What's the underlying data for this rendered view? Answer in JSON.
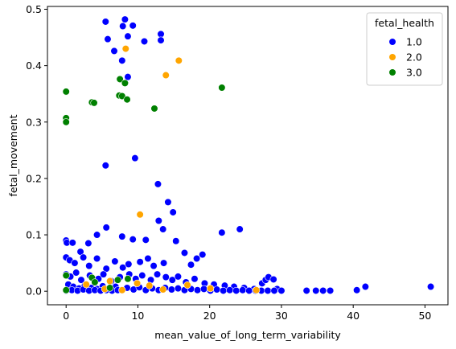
{
  "chart_data": {
    "type": "scatter",
    "title": "",
    "xlabel": "mean_value_of_long_term_variability",
    "ylabel": "fetal_movement",
    "xlim": [
      -2.6,
      53.2
    ],
    "ylim": [
      -0.024,
      0.505
    ],
    "xticks": [
      "0",
      "10",
      "20",
      "30",
      "40",
      "50"
    ],
    "yticks": [
      "0.0",
      "0.1",
      "0.2",
      "0.3",
      "0.4",
      "0.5"
    ],
    "grid": false,
    "legend": {
      "title": "fetal_health",
      "placement": "top-right"
    },
    "series": [
      {
        "name": "1.0",
        "color": "#0000ff",
        "points": [
          [
            5.5,
            0.478
          ],
          [
            8.2,
            0.482
          ],
          [
            9.3,
            0.471
          ],
          [
            7.9,
            0.47
          ],
          [
            13.2,
            0.456
          ],
          [
            13.2,
            0.445
          ],
          [
            5.8,
            0.447
          ],
          [
            8.6,
            0.452
          ],
          [
            10.9,
            0.443
          ],
          [
            6.7,
            0.426
          ],
          [
            7.8,
            0.409
          ],
          [
            8.6,
            0.38
          ],
          [
            5.5,
            0.223
          ],
          [
            9.6,
            0.236
          ],
          [
            12.8,
            0.19
          ],
          [
            14.2,
            0.158
          ],
          [
            14.9,
            0.14
          ],
          [
            12.9,
            0.125
          ],
          [
            13.5,
            0.11
          ],
          [
            24.2,
            0.11
          ],
          [
            21.7,
            0.104
          ],
          [
            5.6,
            0.113
          ],
          [
            4.3,
            0.1
          ],
          [
            7.8,
            0.097
          ],
          [
            9.3,
            0.092
          ],
          [
            11.1,
            0.091
          ],
          [
            15.3,
            0.089
          ],
          [
            19.0,
            0.065
          ],
          [
            16.5,
            0.068
          ],
          [
            18.2,
            0.058
          ],
          [
            17.4,
            0.047
          ],
          [
            0.0,
            0.09
          ],
          [
            0.1,
            0.086
          ],
          [
            0.9,
            0.086
          ],
          [
            2.0,
            0.07
          ],
          [
            3.1,
            0.085
          ],
          [
            0.0,
            0.06
          ],
          [
            0.5,
            0.055
          ],
          [
            1.2,
            0.05
          ],
          [
            2.4,
            0.06
          ],
          [
            3.2,
            0.045
          ],
          [
            4.3,
            0.058
          ],
          [
            5.6,
            0.04
          ],
          [
            6.8,
            0.053
          ],
          [
            7.9,
            0.042
          ],
          [
            8.7,
            0.048
          ],
          [
            10.3,
            0.052
          ],
          [
            11.4,
            0.058
          ],
          [
            12.2,
            0.045
          ],
          [
            13.6,
            0.05
          ],
          [
            0.0,
            0.03
          ],
          [
            0.6,
            0.026
          ],
          [
            1.4,
            0.033
          ],
          [
            2.1,
            0.02
          ],
          [
            3.3,
            0.028
          ],
          [
            4.5,
            0.022
          ],
          [
            5.2,
            0.03
          ],
          [
            6.3,
            0.018
          ],
          [
            7.5,
            0.025
          ],
          [
            8.8,
            0.03
          ],
          [
            9.7,
            0.022
          ],
          [
            10.6,
            0.028
          ],
          [
            11.8,
            0.02
          ],
          [
            12.7,
            0.03
          ],
          [
            13.9,
            0.025
          ],
          [
            14.8,
            0.02
          ],
          [
            15.6,
            0.026
          ],
          [
            16.7,
            0.016
          ],
          [
            17.9,
            0.022
          ],
          [
            19.3,
            0.014
          ],
          [
            20.6,
            0.012
          ],
          [
            22.1,
            0.01
          ],
          [
            23.4,
            0.008
          ],
          [
            24.8,
            0.006
          ],
          [
            26.2,
            0.004
          ],
          [
            27.3,
            0.014
          ],
          [
            27.8,
            0.02
          ],
          [
            28.2,
            0.025
          ],
          [
            28.9,
            0.021
          ],
          [
            29.4,
            0.004
          ],
          [
            0.3,
            0.012
          ],
          [
            1.0,
            0.008
          ],
          [
            1.8,
            0.005
          ],
          [
            2.6,
            0.01
          ],
          [
            3.5,
            0.006
          ],
          [
            4.3,
            0.004
          ],
          [
            5.1,
            0.009
          ],
          [
            6.0,
            0.003
          ],
          [
            6.9,
            0.008
          ],
          [
            7.7,
            0.002
          ],
          [
            8.5,
            0.006
          ],
          [
            9.4,
            0.003
          ],
          [
            10.2,
            0.007
          ],
          [
            11.1,
            0.002
          ],
          [
            12.0,
            0.005
          ],
          [
            12.9,
            0.002
          ],
          [
            13.8,
            0.006
          ],
          [
            14.7,
            0.003
          ],
          [
            15.6,
            0.005
          ],
          [
            16.5,
            0.002
          ],
          [
            17.4,
            0.004
          ],
          [
            18.3,
            0.002
          ],
          [
            19.2,
            0.004
          ],
          [
            20.1,
            0.001
          ],
          [
            21.0,
            0.003
          ],
          [
            21.9,
            0.001
          ],
          [
            22.8,
            0.002
          ],
          [
            23.7,
            0.001
          ],
          [
            24.6,
            0.002
          ],
          [
            25.5,
            0.001
          ],
          [
            26.4,
            0.001
          ],
          [
            27.2,
            0.001
          ],
          [
            28.1,
            0.001
          ],
          [
            29.0,
            0.001
          ],
          [
            30.0,
            0.001
          ],
          [
            0.0,
            0.001
          ],
          [
            0.8,
            0.002
          ],
          [
            1.6,
            0.001
          ],
          [
            2.4,
            0.003
          ],
          [
            3.2,
            0.001
          ],
          [
            4.0,
            0.002
          ],
          [
            4.8,
            0.001
          ],
          [
            5.6,
            0.002
          ],
          [
            6.4,
            0.001
          ],
          [
            7.2,
            0.002
          ],
          [
            33.5,
            0.001
          ],
          [
            34.8,
            0.001
          ],
          [
            35.8,
            0.001
          ],
          [
            36.8,
            0.001
          ],
          [
            40.5,
            0.002
          ],
          [
            41.7,
            0.008
          ],
          [
            50.8,
            0.008
          ]
        ]
      },
      {
        "name": "2.0",
        "color": "#ffa500",
        "points": [
          [
            8.3,
            0.43
          ],
          [
            15.7,
            0.409
          ],
          [
            13.9,
            0.383
          ],
          [
            10.3,
            0.136
          ],
          [
            9.9,
            0.014
          ],
          [
            11.6,
            0.01
          ],
          [
            6.1,
            0.018
          ],
          [
            2.8,
            0.012
          ],
          [
            5.4,
            0.004
          ],
          [
            7.8,
            0.002
          ],
          [
            13.5,
            0.003
          ],
          [
            16.9,
            0.011
          ],
          [
            20.1,
            0.005
          ],
          [
            26.5,
            0.002
          ]
        ]
      },
      {
        "name": "3.0",
        "color": "#008000",
        "points": [
          [
            0.0,
            0.354
          ],
          [
            0.0,
            0.307
          ],
          [
            0.0,
            0.3
          ],
          [
            3.6,
            0.335
          ],
          [
            3.9,
            0.334
          ],
          [
            7.5,
            0.376
          ],
          [
            8.2,
            0.369
          ],
          [
            7.4,
            0.347
          ],
          [
            7.8,
            0.346
          ],
          [
            8.5,
            0.34
          ],
          [
            12.3,
            0.324
          ],
          [
            21.7,
            0.361
          ],
          [
            0.0,
            0.028
          ],
          [
            0.0,
            0.002
          ],
          [
            3.6,
            0.024
          ],
          [
            4.0,
            0.016
          ],
          [
            7.2,
            0.02
          ],
          [
            8.6,
            0.022
          ],
          [
            6.1,
            0.006
          ]
        ]
      }
    ]
  }
}
